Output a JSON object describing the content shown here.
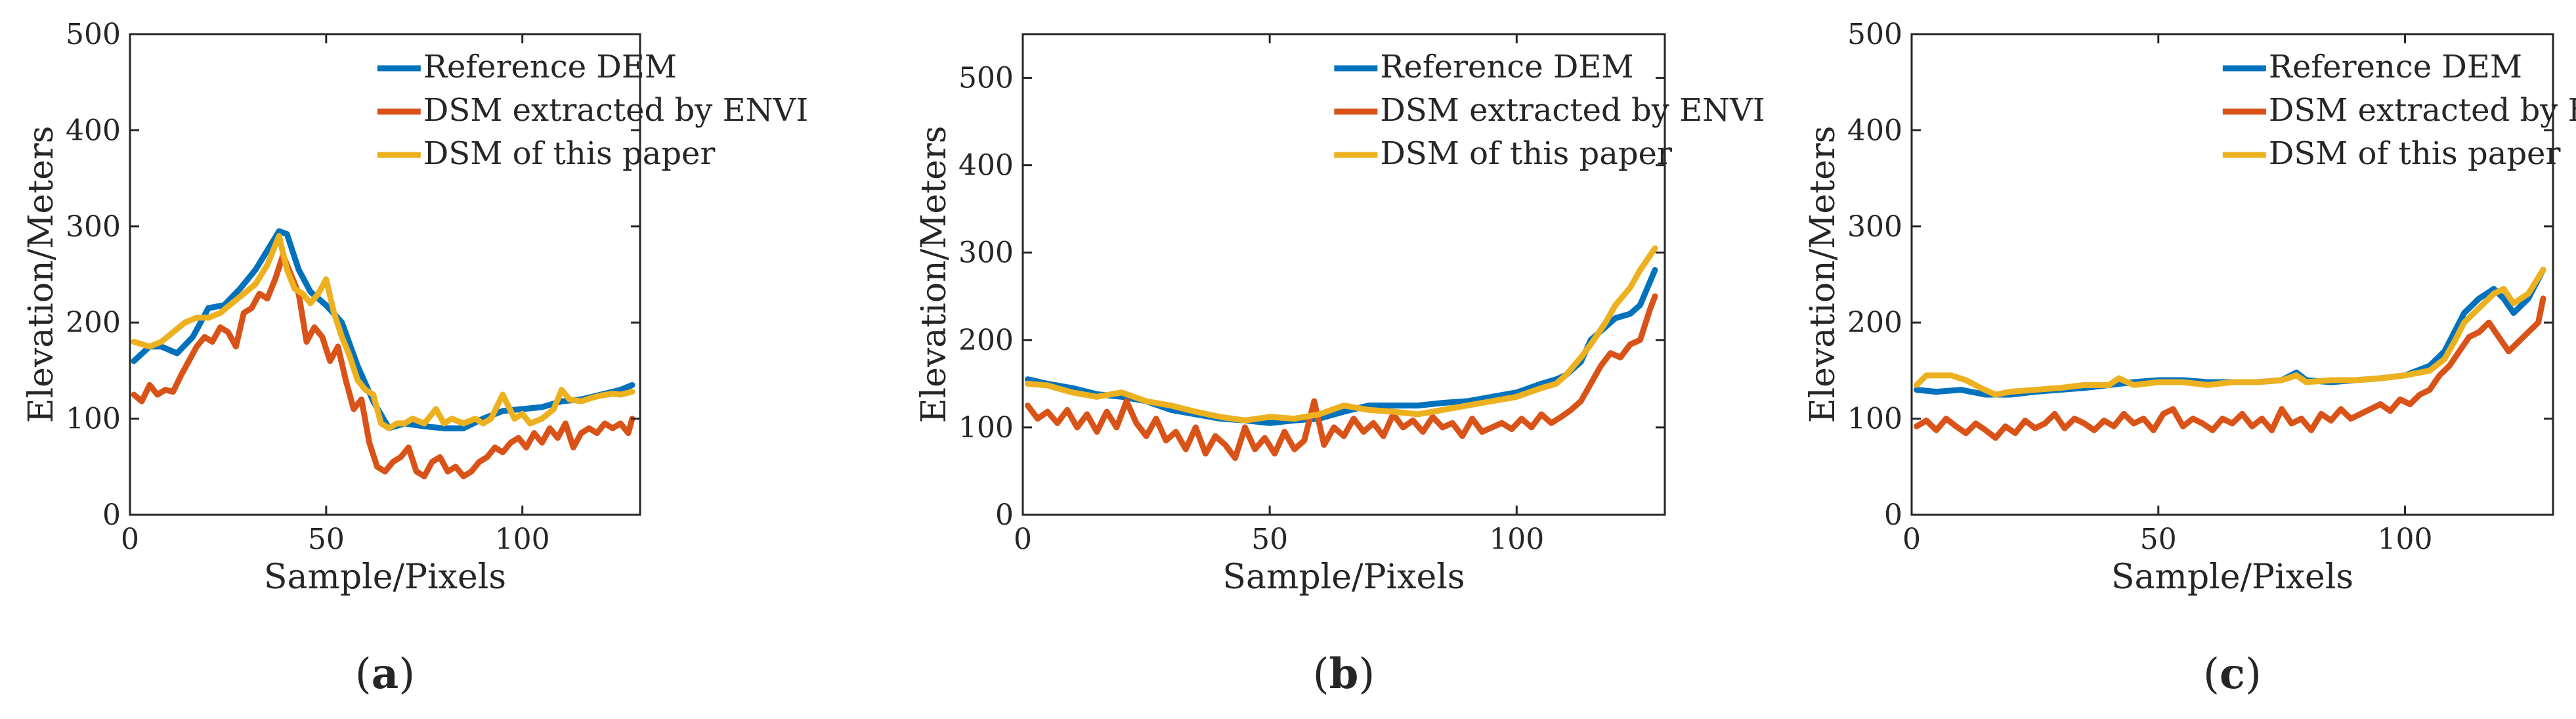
{
  "figure": {
    "legend_position": "top-right",
    "colors": {
      "reference": "#0072BD",
      "envi": "#D95319",
      "paper": "#EDB120",
      "axis": "#262626"
    }
  },
  "chart_data": [
    {
      "type": "line",
      "panel_label": "a",
      "xlabel": "Sample/Pixels",
      "ylabel": "Elevation/Meters",
      "xlim": [
        0,
        130
      ],
      "ylim": [
        0,
        500
      ],
      "xticks": [
        0,
        50,
        100
      ],
      "yticks": [
        0,
        100,
        200,
        300,
        400,
        500
      ],
      "xtick_labels": [
        "0",
        "50",
        "100"
      ],
      "ytick_labels": [
        "0",
        "100",
        "200",
        "300",
        "400",
        "500"
      ],
      "series": [
        {
          "name": "Reference DEM",
          "color_key": "reference",
          "x": [
            1,
            5,
            8,
            12,
            16,
            20,
            24,
            28,
            32,
            35,
            38,
            40,
            43,
            46,
            50,
            54,
            58,
            62,
            66,
            70,
            75,
            80,
            85,
            90,
            95,
            100,
            105,
            110,
            115,
            120,
            125,
            128
          ],
          "y": [
            160,
            175,
            175,
            168,
            185,
            215,
            218,
            235,
            255,
            275,
            295,
            292,
            255,
            232,
            218,
            200,
            155,
            118,
            90,
            95,
            92,
            90,
            90,
            100,
            108,
            110,
            112,
            118,
            120,
            125,
            130,
            135
          ]
        },
        {
          "name": "DSM extracted by ENVI",
          "color_key": "envi",
          "x": [
            1,
            3,
            5,
            7,
            9,
            11,
            13,
            15,
            17,
            19,
            21,
            23,
            25,
            27,
            29,
            31,
            33,
            35,
            37,
            39,
            41,
            43,
            45,
            47,
            49,
            51,
            53,
            55,
            57,
            59,
            61,
            63,
            65,
            67,
            69,
            71,
            73,
            75,
            77,
            79,
            81,
            83,
            85,
            87,
            89,
            91,
            93,
            95,
            97,
            99,
            101,
            103,
            105,
            107,
            109,
            111,
            113,
            115,
            117,
            119,
            121,
            123,
            125,
            127,
            128
          ],
          "y": [
            125,
            118,
            135,
            125,
            130,
            128,
            145,
            160,
            175,
            185,
            180,
            195,
            190,
            175,
            210,
            215,
            230,
            225,
            245,
            270,
            250,
            230,
            180,
            195,
            185,
            160,
            175,
            140,
            110,
            120,
            75,
            50,
            45,
            55,
            60,
            70,
            45,
            40,
            55,
            60,
            45,
            50,
            40,
            45,
            55,
            60,
            70,
            65,
            75,
            80,
            70,
            85,
            75,
            90,
            80,
            95,
            70,
            85,
            90,
            85,
            95,
            90,
            95,
            85,
            100
          ]
        },
        {
          "name": "DSM of this paper",
          "color_key": "paper",
          "x": [
            1,
            5,
            8,
            11,
            14,
            17,
            20,
            23,
            26,
            29,
            32,
            35,
            38,
            40,
            42,
            44,
            46,
            48,
            50,
            52,
            54,
            56,
            58,
            60,
            62,
            64,
            66,
            68,
            70,
            72,
            75,
            78,
            80,
            82,
            85,
            88,
            90,
            92,
            95,
            98,
            100,
            102,
            105,
            108,
            110,
            112,
            115,
            118,
            120,
            123,
            125,
            128
          ],
          "y": [
            180,
            175,
            180,
            190,
            200,
            205,
            205,
            210,
            220,
            230,
            240,
            260,
            290,
            255,
            235,
            230,
            220,
            230,
            245,
            210,
            185,
            165,
            140,
            130,
            125,
            95,
            90,
            95,
            95,
            100,
            95,
            110,
            95,
            100,
            95,
            100,
            95,
            100,
            125,
            100,
            105,
            95,
            100,
            110,
            130,
            120,
            118,
            122,
            124,
            126,
            125,
            128
          ]
        }
      ]
    },
    {
      "type": "line",
      "panel_label": "b",
      "xlabel": "Sample/Pixels",
      "ylabel": "Elevation/Meters",
      "xlim": [
        0,
        130
      ],
      "ylim": [
        0,
        550
      ],
      "xticks": [
        0,
        50,
        100
      ],
      "yticks": [
        0,
        100,
        200,
        300,
        400,
        500
      ],
      "xtick_labels": [
        "0",
        "50",
        "100"
      ],
      "ytick_labels": [
        "0",
        "100",
        "200",
        "300",
        "400",
        "500"
      ],
      "series": [
        {
          "name": "Reference DEM",
          "color_key": "reference",
          "x": [
            1,
            5,
            10,
            15,
            20,
            25,
            30,
            35,
            40,
            45,
            50,
            55,
            60,
            65,
            70,
            75,
            80,
            85,
            90,
            95,
            100,
            105,
            108,
            110,
            113,
            115,
            118,
            120,
            123,
            125,
            128
          ],
          "y": [
            155,
            150,
            145,
            138,
            135,
            130,
            120,
            115,
            110,
            108,
            105,
            108,
            110,
            118,
            125,
            125,
            125,
            128,
            130,
            135,
            140,
            150,
            155,
            160,
            175,
            200,
            215,
            225,
            230,
            240,
            280
          ]
        },
        {
          "name": "DSM extracted by ENVI",
          "color_key": "envi",
          "x": [
            1,
            3,
            5,
            7,
            9,
            11,
            13,
            15,
            17,
            19,
            21,
            23,
            25,
            27,
            29,
            31,
            33,
            35,
            37,
            39,
            41,
            43,
            45,
            47,
            49,
            51,
            53,
            55,
            57,
            59,
            61,
            63,
            65,
            67,
            69,
            71,
            73,
            75,
            77,
            79,
            81,
            83,
            85,
            87,
            89,
            91,
            93,
            95,
            97,
            99,
            101,
            103,
            105,
            107,
            109,
            111,
            113,
            115,
            117,
            119,
            121,
            123,
            125,
            127,
            128
          ],
          "y": [
            125,
            110,
            118,
            105,
            120,
            100,
            115,
            95,
            118,
            100,
            130,
            105,
            90,
            110,
            85,
            95,
            75,
            100,
            70,
            90,
            80,
            65,
            100,
            75,
            88,
            70,
            95,
            75,
            85,
            130,
            80,
            100,
            90,
            110,
            95,
            105,
            90,
            115,
            100,
            108,
            95,
            112,
            100,
            105,
            90,
            110,
            95,
            100,
            105,
            98,
            110,
            100,
            115,
            105,
            112,
            120,
            130,
            150,
            170,
            185,
            180,
            195,
            200,
            235,
            250
          ]
        },
        {
          "name": "DSM of this paper",
          "color_key": "paper",
          "x": [
            1,
            5,
            10,
            15,
            20,
            25,
            30,
            35,
            40,
            45,
            50,
            55,
            60,
            65,
            70,
            75,
            80,
            85,
            90,
            95,
            100,
            105,
            108,
            110,
            113,
            115,
            118,
            120,
            123,
            125,
            128
          ],
          "y": [
            150,
            148,
            140,
            135,
            140,
            130,
            125,
            118,
            112,
            108,
            112,
            110,
            115,
            125,
            120,
            118,
            115,
            120,
            125,
            130,
            135,
            145,
            150,
            160,
            180,
            195,
            220,
            240,
            260,
            280,
            305
          ]
        }
      ]
    },
    {
      "type": "line",
      "panel_label": "c",
      "xlabel": "Sample/Pixels",
      "ylabel": "Elevation/Meters",
      "xlim": [
        0,
        130
      ],
      "ylim": [
        0,
        500
      ],
      "xticks": [
        0,
        50,
        100
      ],
      "yticks": [
        0,
        100,
        200,
        300,
        400,
        500
      ],
      "xtick_labels": [
        "0",
        "50",
        "100"
      ],
      "ytick_labels": [
        "0",
        "100",
        "200",
        "300",
        "400",
        "500"
      ],
      "series": [
        {
          "name": "Reference DEM",
          "color_key": "reference",
          "x": [
            1,
            5,
            10,
            15,
            20,
            25,
            30,
            35,
            40,
            45,
            50,
            55,
            60,
            65,
            70,
            75,
            78,
            80,
            85,
            90,
            95,
            100,
            105,
            108,
            110,
            112,
            115,
            118,
            120,
            122,
            125,
            128
          ],
          "y": [
            130,
            128,
            130,
            125,
            125,
            128,
            130,
            132,
            135,
            138,
            140,
            140,
            138,
            138,
            138,
            140,
            148,
            140,
            138,
            140,
            142,
            145,
            155,
            170,
            190,
            210,
            225,
            235,
            225,
            210,
            225,
            255
          ]
        },
        {
          "name": "DSM extracted by ENVI",
          "color_key": "envi",
          "x": [
            1,
            3,
            5,
            7,
            9,
            11,
            13,
            15,
            17,
            19,
            21,
            23,
            25,
            27,
            29,
            31,
            33,
            35,
            37,
            39,
            41,
            43,
            45,
            47,
            49,
            51,
            53,
            55,
            57,
            59,
            61,
            63,
            65,
            67,
            69,
            71,
            73,
            75,
            77,
            79,
            81,
            83,
            85,
            87,
            89,
            91,
            93,
            95,
            97,
            99,
            101,
            103,
            105,
            107,
            109,
            111,
            113,
            115,
            117,
            119,
            121,
            123,
            125,
            127,
            128
          ],
          "y": [
            92,
            98,
            88,
            100,
            92,
            85,
            95,
            88,
            80,
            92,
            85,
            98,
            90,
            95,
            105,
            90,
            100,
            95,
            88,
            98,
            92,
            105,
            95,
            100,
            88,
            105,
            110,
            92,
            100,
            95,
            88,
            100,
            95,
            105,
            92,
            100,
            88,
            110,
            95,
            100,
            88,
            105,
            98,
            110,
            100,
            105,
            110,
            115,
            108,
            120,
            115,
            125,
            130,
            145,
            155,
            170,
            185,
            190,
            200,
            185,
            170,
            180,
            190,
            200,
            225
          ]
        },
        {
          "name": "DSM of this paper",
          "color_key": "paper",
          "x": [
            1,
            3,
            5,
            8,
            11,
            14,
            17,
            20,
            25,
            30,
            35,
            40,
            42,
            45,
            50,
            55,
            60,
            65,
            70,
            75,
            78,
            80,
            85,
            90,
            95,
            100,
            105,
            108,
            110,
            112,
            115,
            118,
            120,
            122,
            125,
            128
          ],
          "y": [
            135,
            145,
            145,
            145,
            140,
            132,
            125,
            128,
            130,
            132,
            135,
            135,
            142,
            135,
            138,
            138,
            135,
            138,
            138,
            140,
            145,
            138,
            140,
            140,
            142,
            145,
            150,
            162,
            180,
            200,
            215,
            230,
            235,
            220,
            230,
            255
          ]
        }
      ]
    }
  ]
}
